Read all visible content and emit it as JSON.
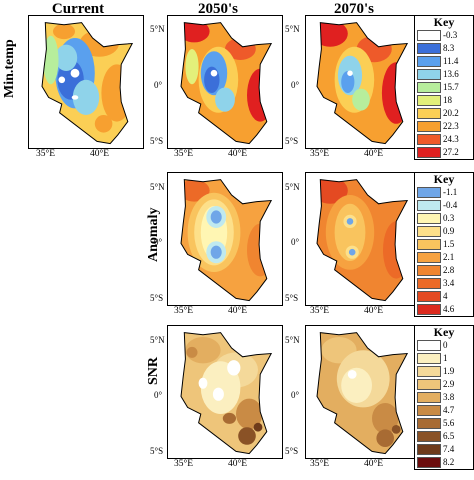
{
  "columns": [
    "Current",
    "2050's",
    "2070's"
  ],
  "rows": [
    {
      "label": "Min.temp"
    },
    {
      "label": "Anomaly"
    },
    {
      "label": "SNR"
    }
  ],
  "latitude_ticks": [
    "5°N",
    "0°",
    "5°S"
  ],
  "longitude_ticks": [
    "35°E",
    "40°E"
  ],
  "legends": {
    "mintemp": {
      "title": "Key",
      "values": [
        "-0.3",
        "8.3",
        "11.4",
        "13.6",
        "15.7",
        "18",
        "20.2",
        "22.3",
        "24.3",
        "27.2"
      ],
      "colors": [
        "#ffffff",
        "#3b6fd9",
        "#5aa0ee",
        "#8fd3ea",
        "#b7ee9c",
        "#e3f07a",
        "#fbcf55",
        "#f7a030",
        "#ee5a2a",
        "#e02020"
      ]
    },
    "anomaly": {
      "title": "Key",
      "values": [
        "-1.1",
        "-0.4",
        "0.3",
        "0.9",
        "1.5",
        "2.1",
        "2.8",
        "3.4",
        "4",
        "4.6"
      ],
      "colors": [
        "#6fa6e8",
        "#bfe9ef",
        "#fff6b3",
        "#fde08a",
        "#f9c45e",
        "#f6a240",
        "#f08530",
        "#ec6a27",
        "#e44a22",
        "#dc2a1e"
      ]
    },
    "snr": {
      "title": "Key",
      "values": [
        "0",
        "1",
        "1.9",
        "2.9",
        "3.8",
        "4.7",
        "5.6",
        "6.5",
        "7.4",
        "8.2"
      ],
      "colors": [
        "#ffffff",
        "#fbefc0",
        "#f4d99a",
        "#eec57a",
        "#e3ae60",
        "#c98b45",
        "#a86b33",
        "#8a5226",
        "#6e3a1a",
        "#6b0c0c"
      ]
    }
  }
}
